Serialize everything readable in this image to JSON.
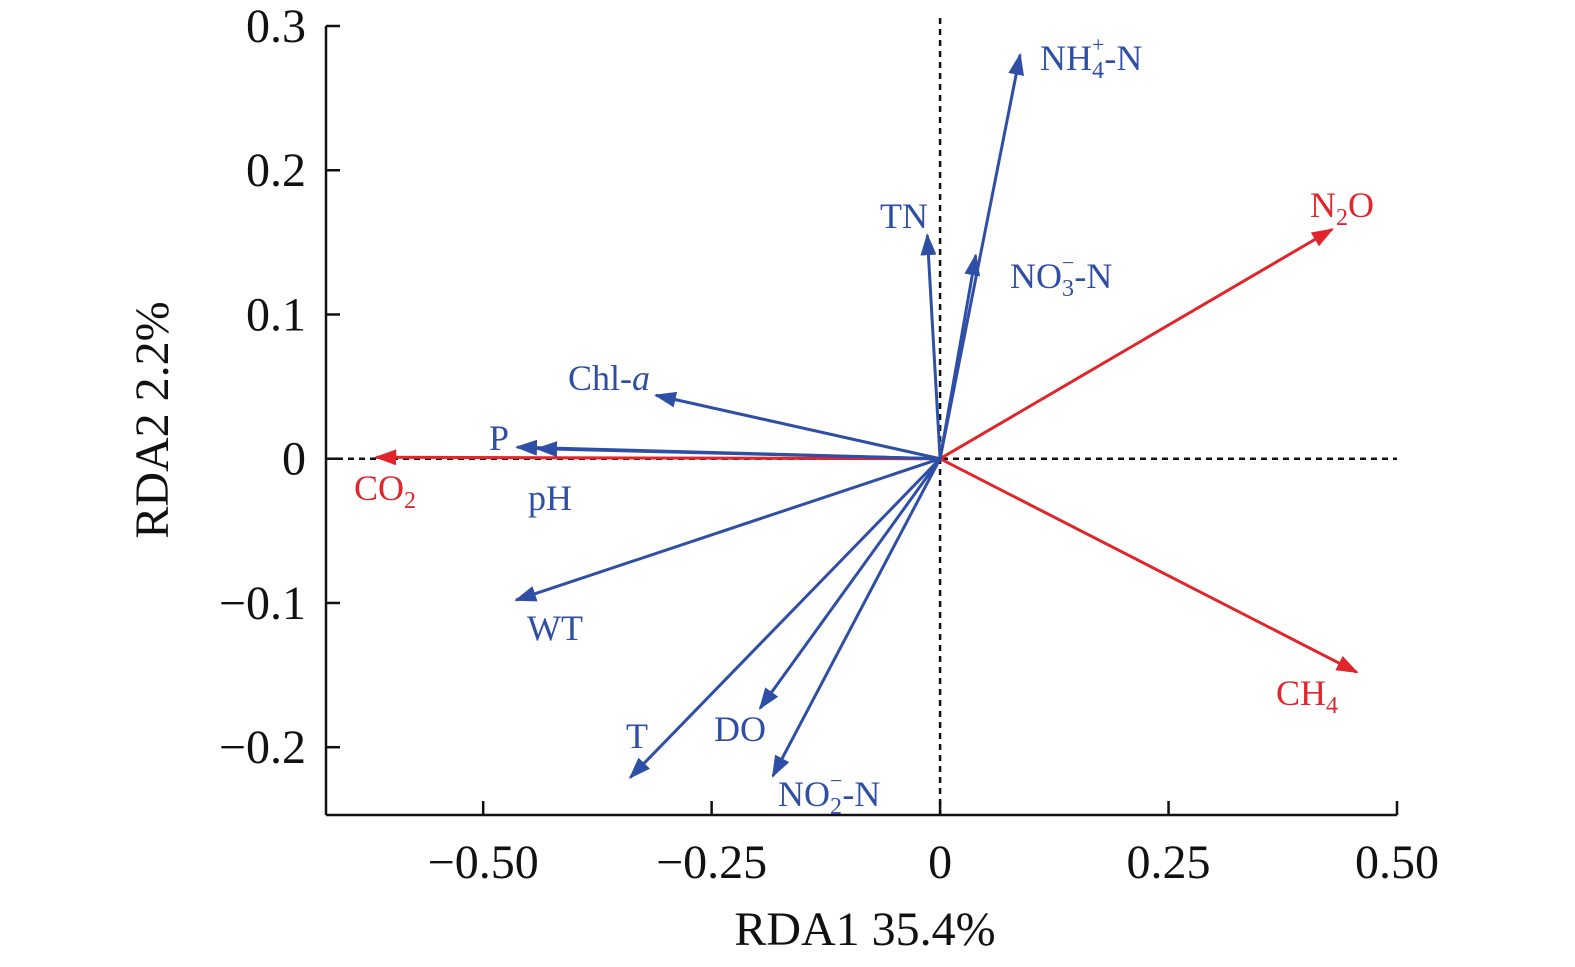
{
  "chart_data": {
    "type": "scatter",
    "subtype": "rda-biplot",
    "xlabel": "RDA1 35.4%",
    "ylabel": "RDA2 2.2%",
    "xlim": [
      -0.672,
      0.5
    ],
    "ylim": [
      -0.247,
      0.3
    ],
    "x_ticks": [
      -0.5,
      -0.25,
      0,
      0.25,
      0.5
    ],
    "x_tick_labels": [
      "−0.50",
      "−0.25",
      "0",
      "0.25",
      "0.50"
    ],
    "y_ticks": [
      -0.2,
      -0.1,
      0,
      0.1,
      0.2,
      0.3
    ],
    "y_tick_labels": [
      "−0.2",
      "−0.1",
      "0",
      "0.1",
      "0.2",
      "0.3"
    ],
    "colors": {
      "environment": "#2f4fa6",
      "response": "#e0262b"
    },
    "series": [
      {
        "name": "response",
        "vectors": [
          {
            "id": "N2O",
            "label": "N2O",
            "segments": [
              {
                "t": "N"
              },
              {
                "t": "2",
                "sub": true
              },
              {
                "t": "O"
              }
            ],
            "x": 0.429,
            "y": 0.159
          },
          {
            "id": "CH4",
            "label": "CH4",
            "segments": [
              {
                "t": "CH"
              },
              {
                "t": "4",
                "sub": true
              }
            ],
            "x": 0.456,
            "y": -0.148
          },
          {
            "id": "CO2",
            "label": "CO2",
            "segments": [
              {
                "t": "CO"
              },
              {
                "t": "2",
                "sub": true
              }
            ],
            "x": -0.617,
            "y": 0.001
          }
        ]
      },
      {
        "name": "environment",
        "vectors": [
          {
            "id": "NH4N",
            "label": "NH4+-N",
            "segments": [
              {
                "t": "NH"
              },
              {
                "t": "4",
                "sub": true
              },
              {
                "t": "+",
                "sup": true
              },
              {
                "t": "-N"
              }
            ],
            "x": 0.0875,
            "y": 0.28
          },
          {
            "id": "TN",
            "label": "TN",
            "segments": [
              {
                "t": "TN"
              }
            ],
            "x": -0.014,
            "y": 0.155
          },
          {
            "id": "NO3N",
            "label": "NO3--N",
            "segments": [
              {
                "t": "NO"
              },
              {
                "t": "3",
                "sub": true
              },
              {
                "t": "−",
                "sup": true
              },
              {
                "t": "-N"
              }
            ],
            "x": 0.039,
            "y": 0.141
          },
          {
            "id": "Chla",
            "label": "Chl-a",
            "segments": [
              {
                "t": "Chl-"
              },
              {
                "t": "a",
                "italic": true
              }
            ],
            "x": -0.311,
            "y": 0.044
          },
          {
            "id": "P",
            "label": "P",
            "segments": [
              {
                "t": "P"
              }
            ],
            "x": -0.463,
            "y": 0.008
          },
          {
            "id": "pH",
            "label": "pH",
            "segments": [
              {
                "t": "pH"
              }
            ],
            "x": -0.441,
            "y": 0.007
          },
          {
            "id": "WT",
            "label": "WT",
            "segments": [
              {
                "t": "WT"
              }
            ],
            "x": -0.464,
            "y": -0.098
          },
          {
            "id": "T",
            "label": "T",
            "segments": [
              {
                "t": "T"
              }
            ],
            "x": -0.339,
            "y": -0.221
          },
          {
            "id": "DO",
            "label": "DO",
            "segments": [
              {
                "t": "DO"
              }
            ],
            "x": -0.197,
            "y": -0.173
          },
          {
            "id": "NO2N",
            "label": "NO2--N",
            "segments": [
              {
                "t": "NO"
              },
              {
                "t": "2",
                "sub": true
              },
              {
                "t": "−",
                "sup": true
              },
              {
                "t": "-N"
              }
            ],
            "x": -0.183,
            "y": -0.22
          }
        ]
      }
    ]
  }
}
